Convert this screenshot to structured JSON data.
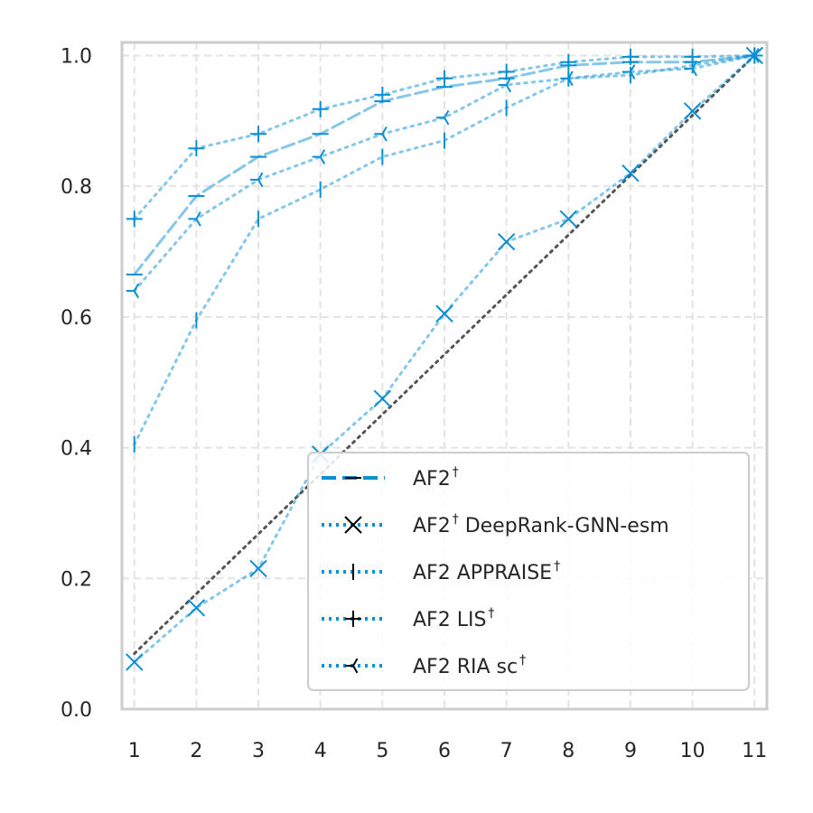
{
  "chart_data": {
    "type": "line",
    "title": "",
    "xlabel": "",
    "ylabel": "",
    "x": [
      1,
      2,
      3,
      4,
      5,
      6,
      7,
      8,
      9,
      10,
      11
    ],
    "xlim": [
      0.8,
      11.2
    ],
    "ylim": [
      0.0,
      1.02
    ],
    "xticks": [
      "1",
      "2",
      "3",
      "4",
      "5",
      "6",
      "7",
      "8",
      "9",
      "10",
      "11"
    ],
    "yticks": [
      "0.0",
      "0.2",
      "0.4",
      "0.6",
      "0.8",
      "1.0"
    ],
    "ytick_values": [
      0.0,
      0.2,
      0.4,
      0.6,
      0.8,
      1.0
    ],
    "grid": true,
    "legend_position": "lower-right",
    "series": [
      {
        "name": "AF2",
        "sup": "†",
        "values": [
          0.665,
          0.785,
          0.845,
          0.88,
          0.93,
          0.952,
          0.965,
          0.985,
          0.99,
          0.99,
          1.0
        ],
        "marker": "hline",
        "line": "dashed",
        "color": "#0a8fd3",
        "opacity": 0.5
      },
      {
        "name": "AF2",
        "sup": "†",
        "suffix": " DeepRank-GNN-esm",
        "values": [
          0.072,
          0.155,
          0.215,
          0.39,
          0.475,
          0.605,
          0.715,
          0.75,
          0.82,
          0.915,
          1.0
        ],
        "marker": "x",
        "line": "dotted",
        "color": "#0a8fd3",
        "opacity": 0.5
      },
      {
        "name": "AF2 APPRAISE",
        "sup": "†",
        "values": [
          0.405,
          0.595,
          0.75,
          0.795,
          0.845,
          0.87,
          0.92,
          0.965,
          0.97,
          0.985,
          1.0
        ],
        "marker": "vline",
        "line": "dotted",
        "color": "#0a8fd3",
        "opacity": 0.5
      },
      {
        "name": "AF2 LIS",
        "sup": "†",
        "values": [
          0.75,
          0.858,
          0.88,
          0.918,
          0.94,
          0.965,
          0.975,
          0.99,
          0.998,
          0.998,
          1.0
        ],
        "marker": "plus",
        "line": "dotted",
        "color": "#0a8fd3",
        "opacity": 0.5
      },
      {
        "name": "AF2 RIA sc",
        "sup": "†",
        "values": [
          0.64,
          0.75,
          0.81,
          0.845,
          0.88,
          0.905,
          0.955,
          0.965,
          0.975,
          0.98,
          1.0
        ],
        "marker": "tri_left",
        "line": "dotted",
        "color": "#0a8fd3",
        "opacity": 0.5
      }
    ],
    "reference_line": {
      "x": [
        1,
        11
      ],
      "values": [
        0.085,
        1.0
      ],
      "color": "#555555",
      "line": "dotted"
    }
  }
}
